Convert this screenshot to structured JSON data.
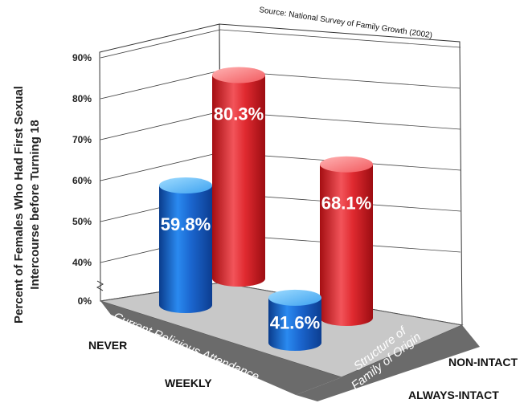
{
  "chart_data": {
    "type": "bar",
    "source": "Source: National Survey of Family Growth (2002)",
    "ylabel": [
      "Percent of Females Who Had First Sexual",
      "Intercourse before Turning 18"
    ],
    "y_ticks": [
      "0%",
      "40%",
      "50%",
      "60%",
      "70%",
      "80%",
      "90%"
    ],
    "ylim": [
      0,
      90
    ],
    "x_axis_title": "Current Religious Attendance",
    "z_axis_title": [
      "Structure of",
      "Family of Origin"
    ],
    "categories": [
      "NEVER",
      "WEEKLY"
    ],
    "depth_categories": [
      "ALWAYS-INTACT",
      "NON-INTACT"
    ],
    "bars": [
      {
        "attendance": "NEVER",
        "family": "ALWAYS-INTACT",
        "value": 59.8,
        "label": "59.8%",
        "color": "#1a5fc4"
      },
      {
        "attendance": "NEVER",
        "family": "NON-INTACT",
        "value": 80.3,
        "label": "80.3%",
        "color": "#d91f24"
      },
      {
        "attendance": "WEEKLY",
        "family": "ALWAYS-INTACT",
        "value": 41.6,
        "label": "41.6%",
        "color": "#1a5fc4"
      },
      {
        "attendance": "WEEKLY",
        "family": "NON-INTACT",
        "value": 68.1,
        "label": "68.1%",
        "color": "#d91f24"
      }
    ],
    "floor_color": "#c8c8c8",
    "band_color": "#6b6b6b"
  }
}
